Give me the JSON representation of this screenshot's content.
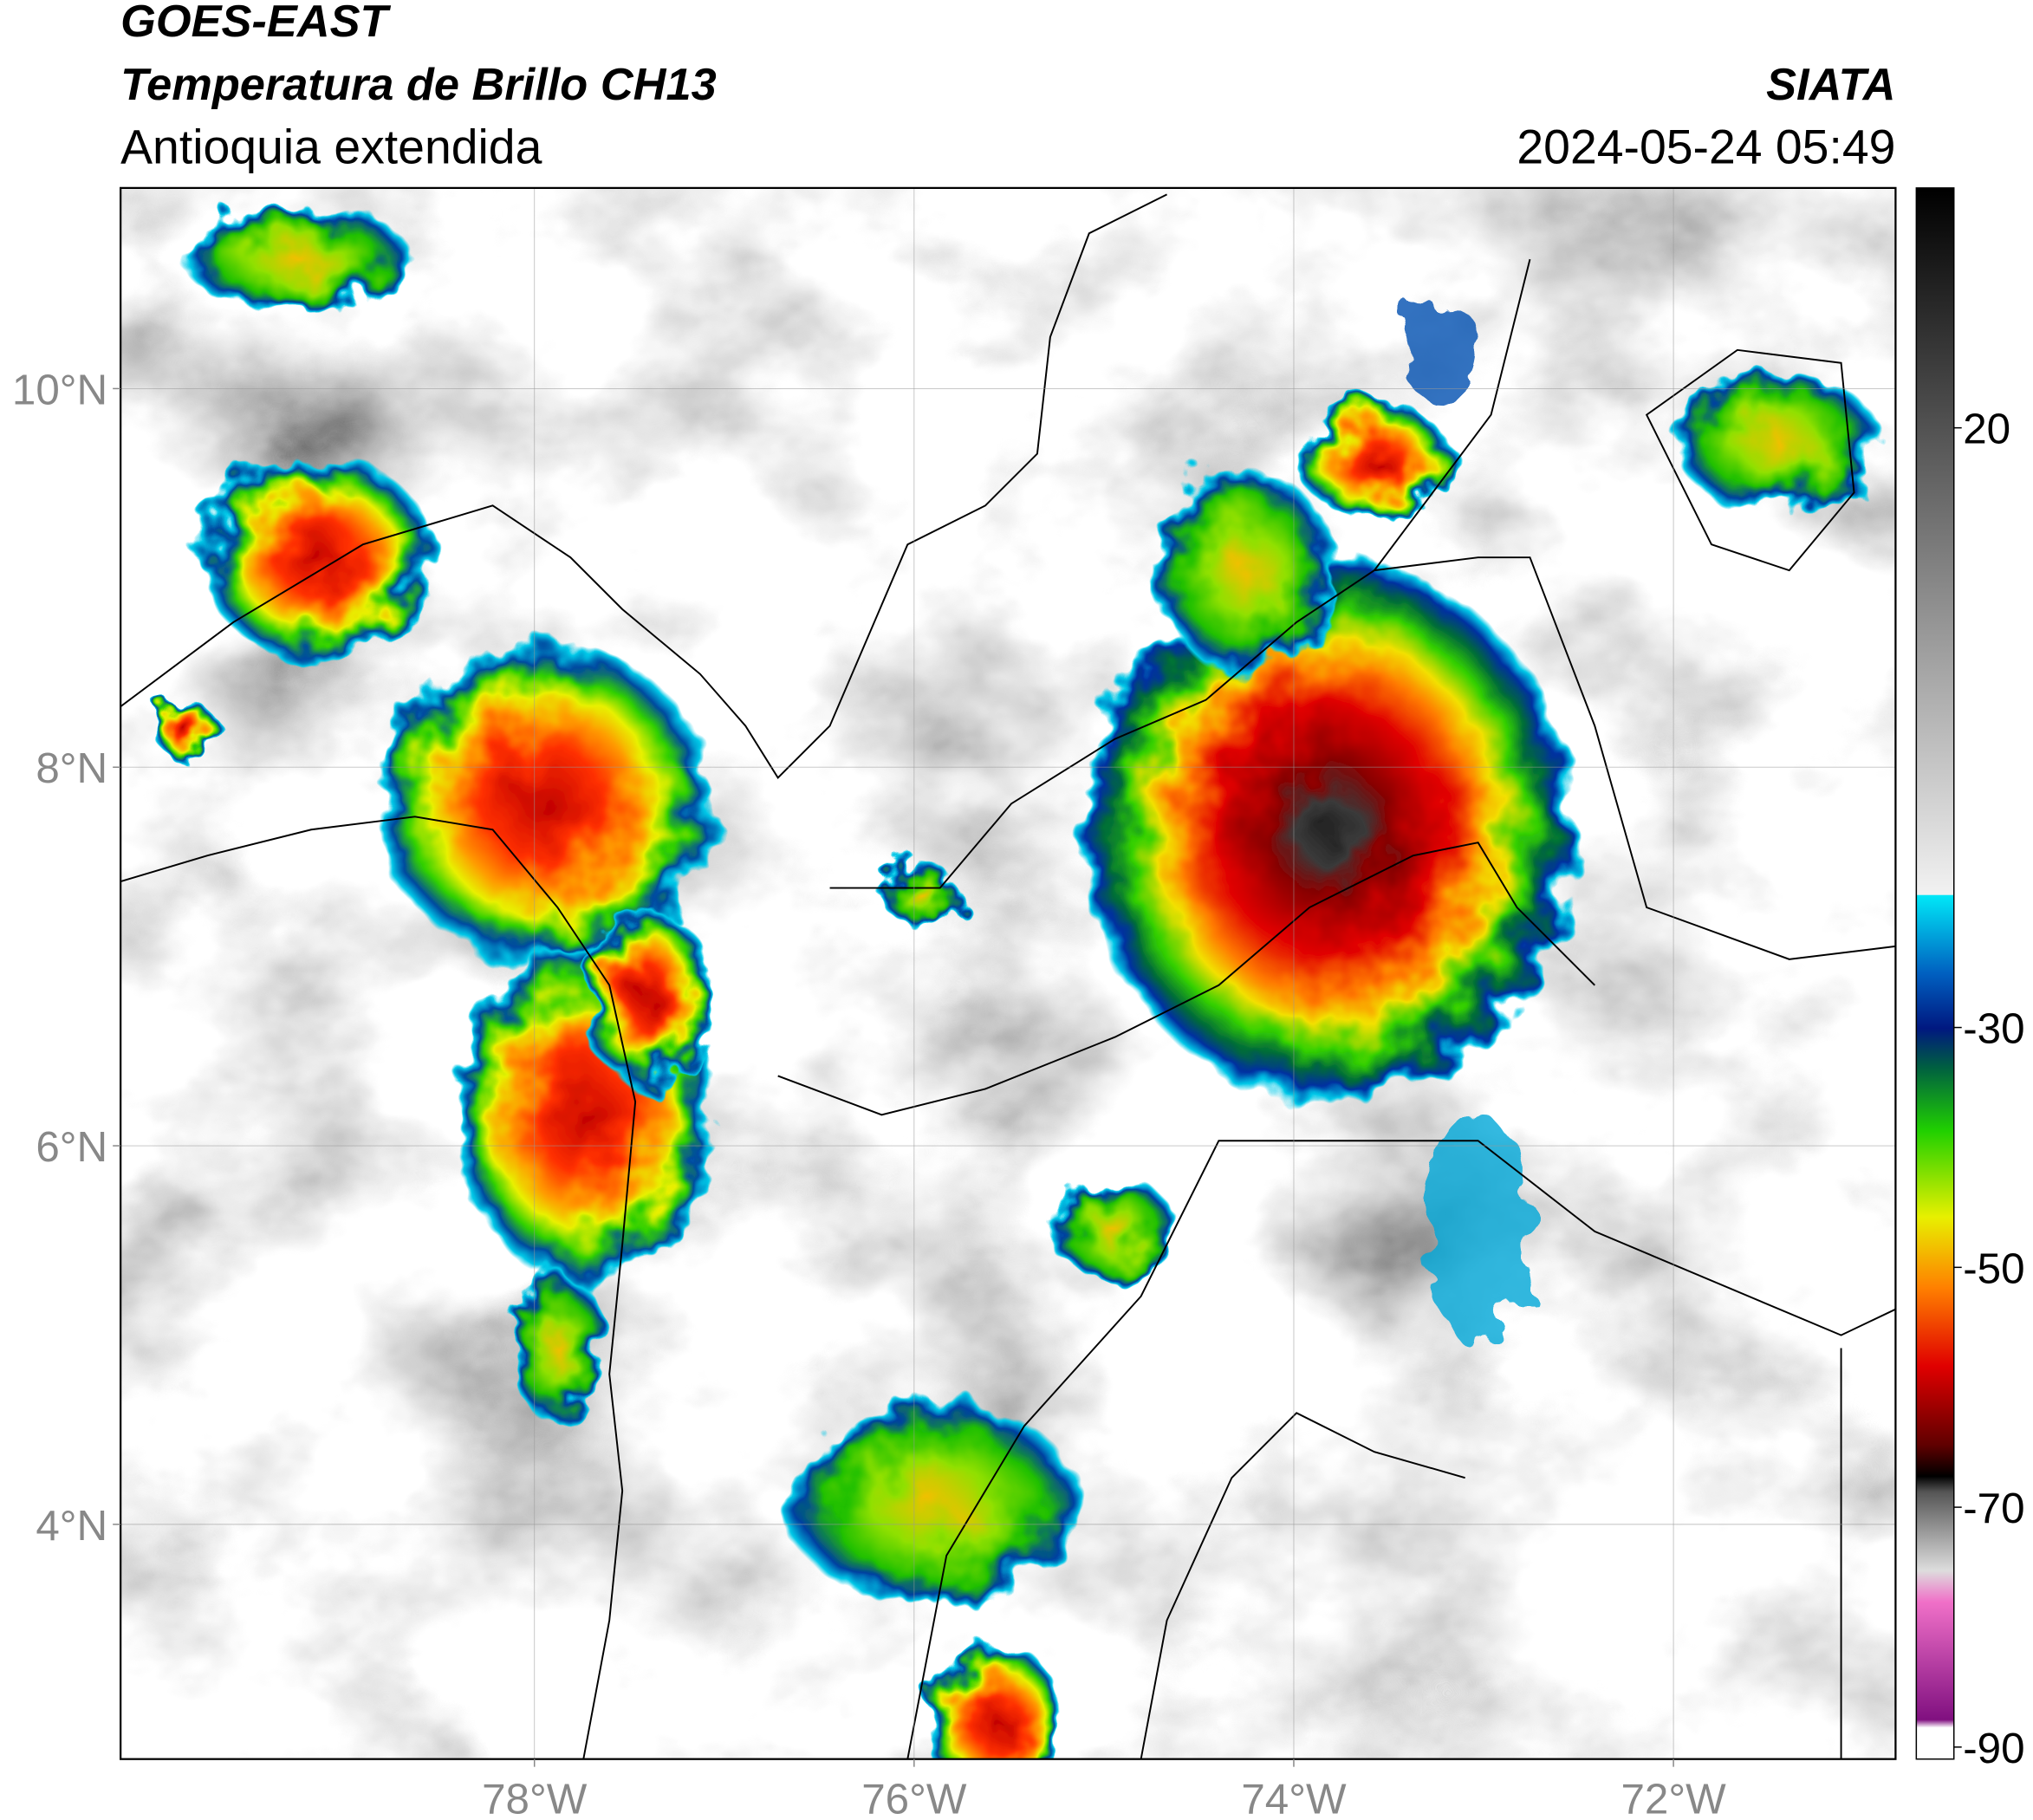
{
  "header": {
    "satellite": "GOES-EAST",
    "product": "Temperatura de Brillo CH13",
    "region": "Antioquia extendida",
    "source": "SIATA",
    "datetime": "2024-05-24 05:49"
  },
  "map": {
    "xlim": [
      -80.18,
      -70.83
    ],
    "ylim": [
      2.76,
      11.06
    ],
    "xticks": [
      {
        "value": -78,
        "label": "78°W"
      },
      {
        "value": -76,
        "label": "76°W"
      },
      {
        "value": -74,
        "label": "74°W"
      },
      {
        "value": -72,
        "label": "72°W"
      }
    ],
    "yticks": [
      {
        "value": 4,
        "label": "4°N"
      },
      {
        "value": 6,
        "label": "6°N"
      },
      {
        "value": 8,
        "label": "8°N"
      },
      {
        "value": 10,
        "label": "10°N"
      }
    ],
    "grid": true
  },
  "colorbar": {
    "lim": [
      -91,
      40
    ],
    "ticks": [
      -90,
      -70,
      -50,
      -30,
      20
    ]
  }
}
